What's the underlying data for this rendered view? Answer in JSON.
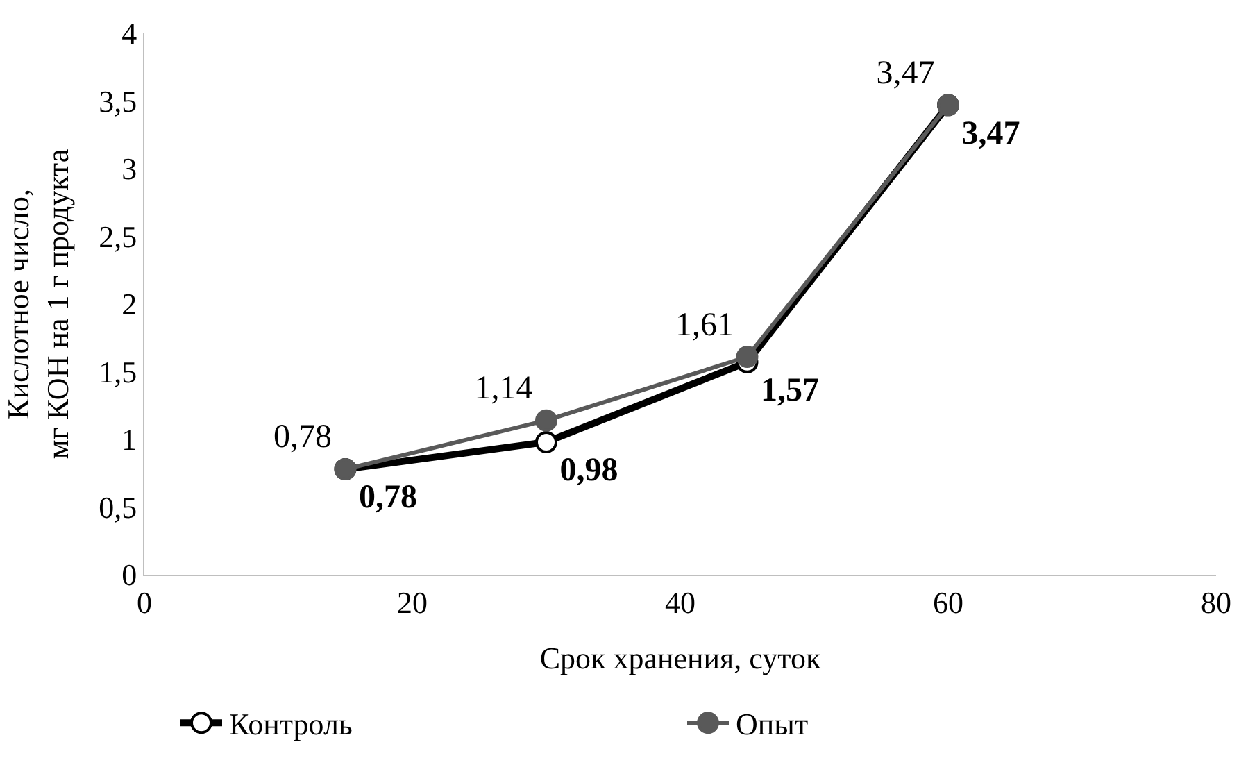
{
  "chart_data": {
    "type": "line",
    "xlabel": "Срок хранения, суток",
    "ylabel": "Кислотное число,\nмг КОН на 1 г продукта",
    "x": [
      15,
      30,
      45,
      60
    ],
    "series": [
      {
        "name": "Контроль",
        "color": "#000000",
        "values": [
          0.78,
          0.98,
          1.57,
          3.47
        ],
        "value_labels": [
          "0,78",
          "0,98",
          "1,57",
          "3,47"
        ]
      },
      {
        "name": "Опыт",
        "color": "#595959",
        "values": [
          0.78,
          1.14,
          1.61,
          3.47
        ],
        "value_labels": [
          "0,78",
          "1,14",
          "1,61",
          "3,47"
        ]
      }
    ],
    "xlim": [
      0,
      80
    ],
    "xticks": [
      0,
      20,
      40,
      60,
      80
    ],
    "ylim": [
      0,
      4
    ],
    "yticks": [
      0,
      {
        "value": 0.5,
        "label": "0,5"
      },
      1,
      {
        "value": 1.5,
        "label": "1,5"
      },
      2,
      {
        "value": 2.5,
        "label": "2,5"
      },
      3,
      {
        "value": 3.5,
        "label": "3,5"
      },
      4
    ],
    "grid": false,
    "legend": "bottom",
    "marker": "circle",
    "line_style": "solid"
  }
}
